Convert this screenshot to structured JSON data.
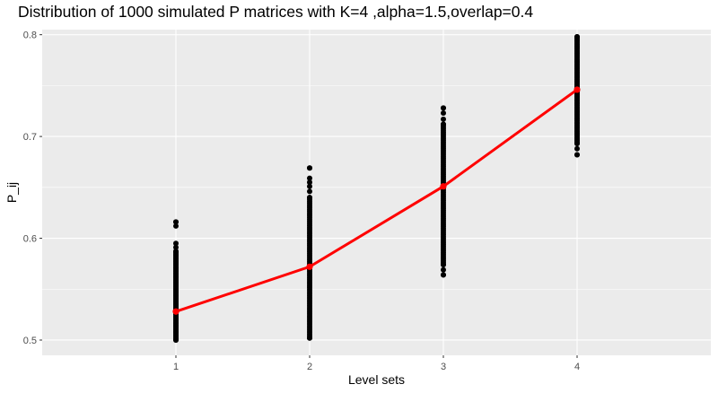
{
  "chart_data": {
    "type": "scatter",
    "title": "Distribution of 1000 simulated P matrices with K=4 ,alpha=1.5,overlap=0.4",
    "xlabel": "Level sets",
    "ylabel": "P_ij",
    "x_categories": [
      "1",
      "2",
      "3",
      "4"
    ],
    "ylim": [
      0.485,
      0.805
    ],
    "y_ticks": [
      0.5,
      0.6,
      0.7,
      0.8
    ],
    "y_tick_labels": [
      "0.5",
      "0.6",
      "0.7",
      "0.8"
    ],
    "grid": true,
    "series": [
      {
        "kind": "points",
        "color": "#000000",
        "groups": [
          {
            "x": "1",
            "min": 0.5,
            "max": 0.616,
            "outliers": [
              0.616,
              0.612,
              0.595,
              0.591,
              0.587
            ]
          },
          {
            "x": "2",
            "min": 0.502,
            "max": 0.669,
            "outliers": [
              0.669,
              0.659,
              0.655,
              0.651,
              0.646,
              0.64
            ]
          },
          {
            "x": "3",
            "min": 0.564,
            "max": 0.728,
            "outliers": [
              0.728,
              0.723,
              0.717,
              0.712,
              0.574,
              0.569,
              0.564
            ]
          },
          {
            "x": "4",
            "min": 0.682,
            "max": 0.798,
            "outliers": [
              0.682,
              0.688,
              0.693
            ]
          }
        ]
      },
      {
        "kind": "mean-line",
        "color": "#ff0000",
        "x": [
          "1",
          "2",
          "3",
          "4"
        ],
        "y": [
          0.528,
          0.572,
          0.651,
          0.746
        ]
      }
    ],
    "colors": {
      "panel": "#ebebeb",
      "grid": "#ffffff",
      "points": "#000000",
      "line": "#ff0000"
    }
  }
}
